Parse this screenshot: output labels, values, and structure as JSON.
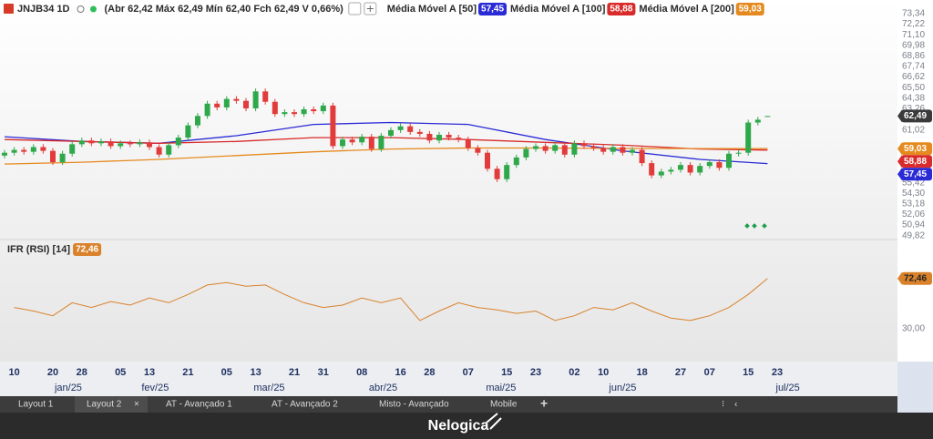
{
  "header": {
    "symbol": "JNJB34 1D",
    "ohlc": "(Abr 62,42 Máx 62,49 Mín 62,40 Fch 62,49 V 0,66%)"
  },
  "chart_data": {
    "type": "candlestick",
    "ylim": [
      49.5,
      74.3
    ],
    "yticks": [
      {
        "value": 73.34,
        "label": "73,34"
      },
      {
        "value": 72.22,
        "label": "72,22"
      },
      {
        "value": 71.1,
        "label": "71,10"
      },
      {
        "value": 69.98,
        "label": "69,98"
      },
      {
        "value": 68.86,
        "label": "68,86"
      },
      {
        "value": 67.74,
        "label": "67,74"
      },
      {
        "value": 66.62,
        "label": "66,62"
      },
      {
        "value": 65.5,
        "label": "65,50"
      },
      {
        "value": 64.38,
        "label": "64,38"
      },
      {
        "value": 63.26,
        "label": "63,26"
      },
      {
        "value": 61.02,
        "label": "61,02"
      },
      {
        "value": 55.42,
        "label": "55,42"
      },
      {
        "value": 54.3,
        "label": "54,30"
      },
      {
        "value": 53.18,
        "label": "53,18"
      },
      {
        "value": 52.06,
        "label": "52,06"
      },
      {
        "value": 50.94,
        "label": "50,94"
      },
      {
        "value": 49.82,
        "label": "49,82"
      }
    ],
    "up_color": "#2ea84a",
    "down_color": "#e23b3b",
    "candles": [
      [
        58.3,
        58.9,
        58.0,
        58.6
      ],
      [
        58.6,
        59.2,
        58.3,
        58.9
      ],
      [
        58.9,
        59.2,
        58.4,
        58.7
      ],
      [
        58.7,
        59.5,
        58.4,
        59.2
      ],
      [
        59.2,
        59.5,
        58.5,
        58.8
      ],
      [
        58.8,
        59.1,
        57.3,
        57.6
      ],
      [
        57.6,
        58.8,
        57.3,
        58.5
      ],
      [
        58.5,
        59.8,
        58.2,
        59.5
      ],
      [
        59.5,
        60.2,
        59.2,
        59.9
      ],
      [
        59.9,
        60.2,
        59.3,
        59.6
      ],
      [
        59.6,
        60.1,
        59.3,
        59.8
      ],
      [
        59.8,
        60.1,
        59.0,
        59.3
      ],
      [
        59.3,
        59.9,
        59.0,
        59.6
      ],
      [
        59.6,
        59.9,
        59.2,
        59.5
      ],
      [
        59.5,
        60.0,
        59.2,
        59.7
      ],
      [
        59.7,
        60.0,
        58.9,
        59.2
      ],
      [
        59.2,
        59.5,
        58.1,
        58.4
      ],
      [
        58.4,
        59.7,
        58.1,
        59.4
      ],
      [
        59.4,
        60.5,
        59.1,
        60.2
      ],
      [
        60.2,
        61.8,
        59.9,
        61.5
      ],
      [
        61.5,
        62.8,
        61.2,
        62.5
      ],
      [
        62.5,
        64.1,
        62.2,
        63.8
      ],
      [
        63.8,
        64.1,
        63.1,
        63.4
      ],
      [
        63.4,
        64.6,
        63.1,
        64.3
      ],
      [
        64.3,
        64.6,
        63.8,
        64.1
      ],
      [
        64.1,
        64.4,
        63.0,
        63.3
      ],
      [
        63.3,
        65.4,
        63.0,
        65.1
      ],
      [
        65.1,
        65.4,
        63.7,
        64.0
      ],
      [
        64.0,
        64.3,
        62.4,
        62.7
      ],
      [
        62.7,
        63.2,
        62.4,
        62.9
      ],
      [
        62.9,
        63.2,
        62.4,
        62.7
      ],
      [
        62.7,
        63.5,
        62.4,
        63.2
      ],
      [
        63.2,
        63.5,
        62.7,
        63.0
      ],
      [
        63.0,
        63.9,
        62.7,
        63.6
      ],
      [
        63.6,
        63.9,
        59.0,
        59.3
      ],
      [
        59.3,
        60.3,
        59.0,
        60.0
      ],
      [
        60.0,
        60.3,
        59.4,
        59.7
      ],
      [
        59.7,
        60.6,
        59.4,
        60.3
      ],
      [
        60.3,
        60.6,
        58.7,
        59.0
      ],
      [
        59.0,
        60.7,
        58.7,
        60.4
      ],
      [
        60.4,
        61.3,
        60.1,
        61.0
      ],
      [
        61.0,
        61.7,
        60.7,
        61.4
      ],
      [
        61.4,
        61.7,
        60.5,
        60.8
      ],
      [
        60.8,
        61.1,
        60.3,
        60.6
      ],
      [
        60.6,
        60.9,
        59.6,
        59.9
      ],
      [
        59.9,
        60.8,
        59.6,
        60.5
      ],
      [
        60.5,
        60.8,
        59.9,
        60.2
      ],
      [
        60.2,
        60.5,
        59.7,
        60.0
      ],
      [
        60.0,
        60.3,
        58.8,
        59.1
      ],
      [
        59.1,
        59.4,
        58.3,
        58.6
      ],
      [
        58.6,
        58.9,
        56.6,
        56.9
      ],
      [
        56.9,
        57.2,
        55.5,
        55.8
      ],
      [
        55.8,
        57.6,
        55.5,
        57.3
      ],
      [
        57.3,
        58.4,
        57.0,
        58.1
      ],
      [
        58.1,
        59.3,
        57.8,
        59.0
      ],
      [
        59.0,
        59.6,
        58.7,
        59.3
      ],
      [
        59.3,
        59.6,
        58.5,
        58.8
      ],
      [
        58.8,
        59.7,
        58.5,
        59.4
      ],
      [
        59.4,
        59.7,
        58.1,
        58.4
      ],
      [
        58.4,
        59.9,
        58.1,
        59.6
      ],
      [
        59.6,
        59.9,
        59.0,
        59.3
      ],
      [
        59.3,
        59.6,
        58.8,
        59.1
      ],
      [
        59.1,
        59.4,
        58.4,
        58.7
      ],
      [
        58.7,
        59.5,
        58.4,
        59.2
      ],
      [
        59.2,
        59.5,
        58.3,
        58.6
      ],
      [
        58.6,
        59.2,
        58.3,
        58.9
      ],
      [
        58.9,
        59.2,
        57.2,
        57.5
      ],
      [
        57.5,
        57.8,
        55.9,
        56.2
      ],
      [
        56.2,
        56.9,
        55.9,
        56.6
      ],
      [
        56.6,
        57.1,
        56.3,
        56.8
      ],
      [
        56.8,
        57.6,
        56.5,
        57.3
      ],
      [
        57.3,
        57.6,
        56.2,
        56.5
      ],
      [
        56.5,
        57.5,
        56.2,
        57.2
      ],
      [
        57.2,
        57.9,
        56.9,
        57.6
      ],
      [
        57.6,
        57.9,
        56.7,
        57.0
      ],
      [
        57.0,
        58.8,
        56.7,
        58.5
      ],
      [
        58.5,
        58.9,
        58.2,
        58.6
      ],
      [
        58.6,
        62.1,
        58.3,
        61.8
      ],
      [
        61.8,
        62.4,
        61.5,
        62.1
      ],
      [
        62.42,
        62.49,
        62.4,
        62.49
      ]
    ],
    "last_price": {
      "value": 62.49,
      "label": "62,49",
      "color": "#3a3a3a"
    },
    "moving_averages": [
      {
        "name": "Média Móvel A [50]",
        "color": "#2b2bd6",
        "x": [
          0,
          8,
          16,
          24,
          32,
          40,
          48,
          56,
          64,
          72,
          79
        ],
        "values": [
          60.3,
          59.8,
          59.6,
          60.4,
          61.6,
          61.8,
          61.6,
          60.0,
          58.8,
          57.9,
          57.45
        ],
        "last": {
          "value": 57.45,
          "label": "57,45"
        }
      },
      {
        "name": "Média Móvel A [100]",
        "color": "#d92b2b",
        "x": [
          0,
          8,
          16,
          24,
          32,
          40,
          48,
          56,
          64,
          72,
          79
        ],
        "values": [
          60.0,
          59.8,
          59.6,
          59.8,
          60.2,
          60.2,
          60.0,
          59.7,
          59.4,
          59.0,
          58.88
        ],
        "last": {
          "value": 58.88,
          "label": "58,88"
        }
      },
      {
        "name": "Média Móvel A [200]",
        "color": "#e58a1f",
        "x": [
          0,
          8,
          16,
          24,
          32,
          40,
          48,
          56,
          64,
          72,
          79
        ],
        "values": [
          57.4,
          57.6,
          57.9,
          58.3,
          58.7,
          59.0,
          59.1,
          59.1,
          59.05,
          59.04,
          59.03
        ],
        "last": {
          "value": 59.03,
          "label": "59,03"
        }
      }
    ],
    "xticks": [
      {
        "index": 1,
        "label": "10"
      },
      {
        "index": 5,
        "label": "20"
      },
      {
        "index": 8,
        "label": "28"
      },
      {
        "index": 12,
        "label": "05"
      },
      {
        "index": 15,
        "label": "13"
      },
      {
        "index": 19,
        "label": "21"
      },
      {
        "index": 23,
        "label": "05"
      },
      {
        "index": 26,
        "label": "13"
      },
      {
        "index": 30,
        "label": "21"
      },
      {
        "index": 33,
        "label": "31"
      },
      {
        "index": 37,
        "label": "08"
      },
      {
        "index": 41,
        "label": "16"
      },
      {
        "index": 44,
        "label": "28"
      },
      {
        "index": 48,
        "label": "07"
      },
      {
        "index": 52,
        "label": "15"
      },
      {
        "index": 55,
        "label": "23"
      },
      {
        "index": 59,
        "label": "02"
      },
      {
        "index": 62,
        "label": "10"
      },
      {
        "index": 66,
        "label": "18"
      },
      {
        "index": 70,
        "label": "27"
      },
      {
        "index": 73,
        "label": "07"
      },
      {
        "index": 77,
        "label": "15"
      },
      {
        "index": 80,
        "label": "23"
      }
    ],
    "months": [
      {
        "index": 6.6,
        "label": "jan/25"
      },
      {
        "index": 15.6,
        "label": "fev/25"
      },
      {
        "index": 27.4,
        "label": "mar/25"
      },
      {
        "index": 39.2,
        "label": "abr/25"
      },
      {
        "index": 51.4,
        "label": "mai/25"
      },
      {
        "index": 64,
        "label": "jun/25"
      },
      {
        "index": 81.1,
        "label": "jul/25"
      }
    ]
  },
  "rsi": {
    "type": "line",
    "name": "IFR (RSI) [14]",
    "color": "#d9822b",
    "ylim": [
      0,
      100
    ],
    "yticks": [
      {
        "value": 30,
        "label": "30,00"
      }
    ],
    "x": [
      1,
      3,
      5,
      7,
      9,
      11,
      13,
      15,
      17,
      19,
      21,
      23,
      25,
      27,
      29,
      31,
      33,
      35,
      37,
      39,
      41,
      43,
      45,
      47,
      49,
      51,
      53,
      55,
      57,
      59,
      61,
      63,
      65,
      67,
      69,
      71,
      73,
      75,
      77,
      79
    ],
    "values": [
      48,
      45,
      41,
      52,
      48,
      53,
      50,
      56,
      52,
      59,
      67,
      69,
      66,
      67,
      59,
      52,
      48,
      50,
      56,
      52,
      56,
      37,
      45,
      52,
      48,
      46,
      43,
      45,
      37,
      41,
      48,
      46,
      52,
      45,
      39,
      37,
      41,
      48,
      59,
      72.46
    ],
    "last": {
      "value": 72.46,
      "label": "72,46"
    }
  },
  "tabs": [
    "Layout 1",
    "Layout 2",
    "AT - Avançado 1",
    "AT - Avançado 2",
    "Misto - Avançado",
    "Mobile"
  ],
  "footer": "Nelogica"
}
